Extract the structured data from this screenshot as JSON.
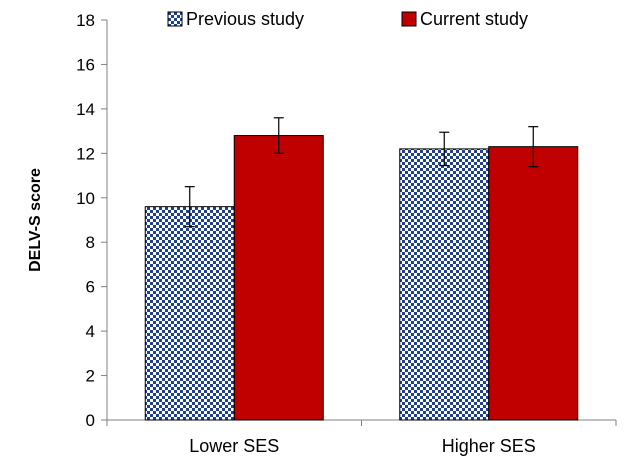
{
  "chart_data": {
    "type": "bar",
    "title": "",
    "xlabel": "",
    "ylabel": "DELV-S score",
    "ylim": [
      0,
      18
    ],
    "yticks": [
      0,
      2,
      4,
      6,
      8,
      10,
      12,
      14,
      16,
      18
    ],
    "categories": [
      "Lower SES",
      "Higher SES"
    ],
    "series": [
      {
        "name": "Previous study",
        "values": [
          9.6,
          12.2
        ],
        "errors": [
          0.9,
          0.75
        ],
        "color": "#1f3f8f",
        "pattern": "checkered"
      },
      {
        "name": "Current study",
        "values": [
          12.8,
          12.3
        ],
        "errors": [
          0.8,
          0.9
        ],
        "color": "#c00000",
        "pattern": "solid"
      }
    ],
    "grid": false,
    "legend_position": "top"
  }
}
